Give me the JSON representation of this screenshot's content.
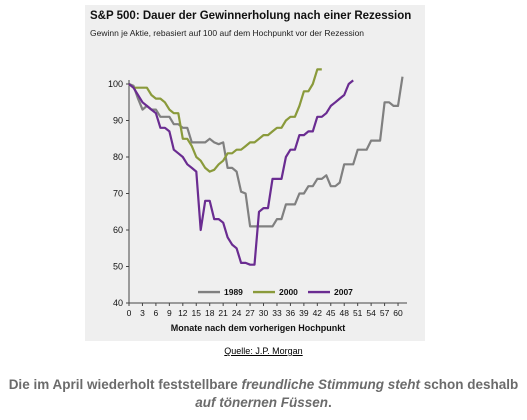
{
  "chart_data": {
    "type": "line",
    "title": "S&P 500: Dauer der Gewinnerholung nach einer Rezession",
    "subtitle": "Gewinn je Aktie, rebasiert auf 100 auf dem Hochpunkt vor der Rezession",
    "xlabel": "Monate nach dem vorherigen Hochpunkt",
    "ylabel": "",
    "xlim": [
      0,
      62
    ],
    "ylim": [
      40,
      100
    ],
    "x_ticks": [
      0,
      3,
      6,
      9,
      12,
      15,
      18,
      21,
      24,
      27,
      30,
      33,
      36,
      39,
      42,
      45,
      48,
      51,
      54,
      57,
      60
    ],
    "y_ticks": [
      40,
      50,
      60,
      70,
      80,
      90,
      100
    ],
    "grid": false,
    "legend": "bottom-center",
    "series": [
      {
        "name": "1989",
        "color": "#808080",
        "x": [
          0,
          1,
          2,
          3,
          4,
          5,
          6,
          7,
          8,
          9,
          10,
          11,
          12,
          13,
          14,
          15,
          16,
          17,
          18,
          19,
          20,
          21,
          22,
          23,
          24,
          25,
          26,
          27,
          28,
          29,
          30,
          31,
          32,
          33,
          34,
          35,
          36,
          37,
          38,
          39,
          40,
          41,
          42,
          43,
          44,
          45,
          46,
          47,
          48,
          49,
          50,
          51,
          52,
          53,
          54,
          55,
          56,
          57,
          58,
          59,
          60,
          61
        ],
        "values": [
          100,
          99.5,
          96,
          93,
          94,
          93,
          93,
          91,
          91,
          91,
          89,
          89,
          88,
          88,
          84,
          84,
          84,
          84,
          85,
          84,
          83.5,
          84,
          77,
          77,
          76,
          70.5,
          70,
          61,
          61,
          61,
          61,
          61,
          61,
          63,
          63,
          67,
          67,
          67,
          70,
          70,
          72,
          72,
          74,
          74,
          75,
          72,
          72,
          73,
          78,
          78,
          78,
          82,
          82,
          82,
          84.5,
          84.5,
          84.5,
          95,
          95,
          94,
          94,
          102
        ]
      },
      {
        "name": "2000",
        "color": "#8a9a3b",
        "x": [
          0,
          1,
          2,
          3,
          4,
          5,
          6,
          7,
          8,
          9,
          10,
          11,
          12,
          13,
          14,
          15,
          16,
          17,
          18,
          19,
          20,
          21,
          22,
          23,
          24,
          25,
          26,
          27,
          28,
          29,
          30,
          31,
          32,
          33,
          34,
          35,
          36,
          37,
          38,
          39,
          40,
          41,
          42,
          43
        ],
        "values": [
          100,
          99,
          99,
          99,
          99,
          97,
          96,
          96,
          95,
          93,
          92,
          92,
          85,
          85,
          83,
          80,
          79,
          77,
          76,
          76.5,
          78,
          79,
          81,
          81,
          82,
          82,
          83,
          84,
          84,
          85,
          86,
          86,
          87,
          88,
          88,
          90,
          91,
          91,
          94,
          98,
          98,
          100,
          104,
          104
        ]
      },
      {
        "name": "2007",
        "color": "#6a2c91",
        "x": [
          0,
          1,
          2,
          3,
          4,
          5,
          6,
          7,
          8,
          9,
          10,
          11,
          12,
          13,
          14,
          15,
          16,
          17,
          18,
          19,
          20,
          21,
          22,
          23,
          24,
          25,
          26,
          27,
          28,
          29,
          30,
          31,
          32,
          33,
          34,
          35,
          36,
          37,
          38,
          39,
          40,
          41,
          42,
          43,
          44,
          45,
          46,
          47,
          48,
          49,
          50
        ],
        "values": [
          100,
          99,
          97,
          95,
          94,
          93,
          92,
          88,
          88,
          87,
          82,
          81,
          80,
          78,
          77,
          76,
          60,
          68,
          68,
          63,
          63,
          62,
          58,
          56,
          55,
          51,
          51,
          50.5,
          50.5,
          65,
          66,
          66,
          74,
          74,
          74,
          80,
          82,
          82,
          86,
          86,
          87,
          87,
          91,
          91,
          92,
          94,
          95,
          96,
          97,
          100,
          101
        ]
      }
    ]
  },
  "source": "Quelle: J.P. Morgan",
  "caption": {
    "part1": "Die im April wiederholt feststellbare ",
    "part2": "freundliche Stimmung steht",
    "part3": " schon deshalb ",
    "part4": "auf tönernen Füssen",
    "part5": "."
  }
}
